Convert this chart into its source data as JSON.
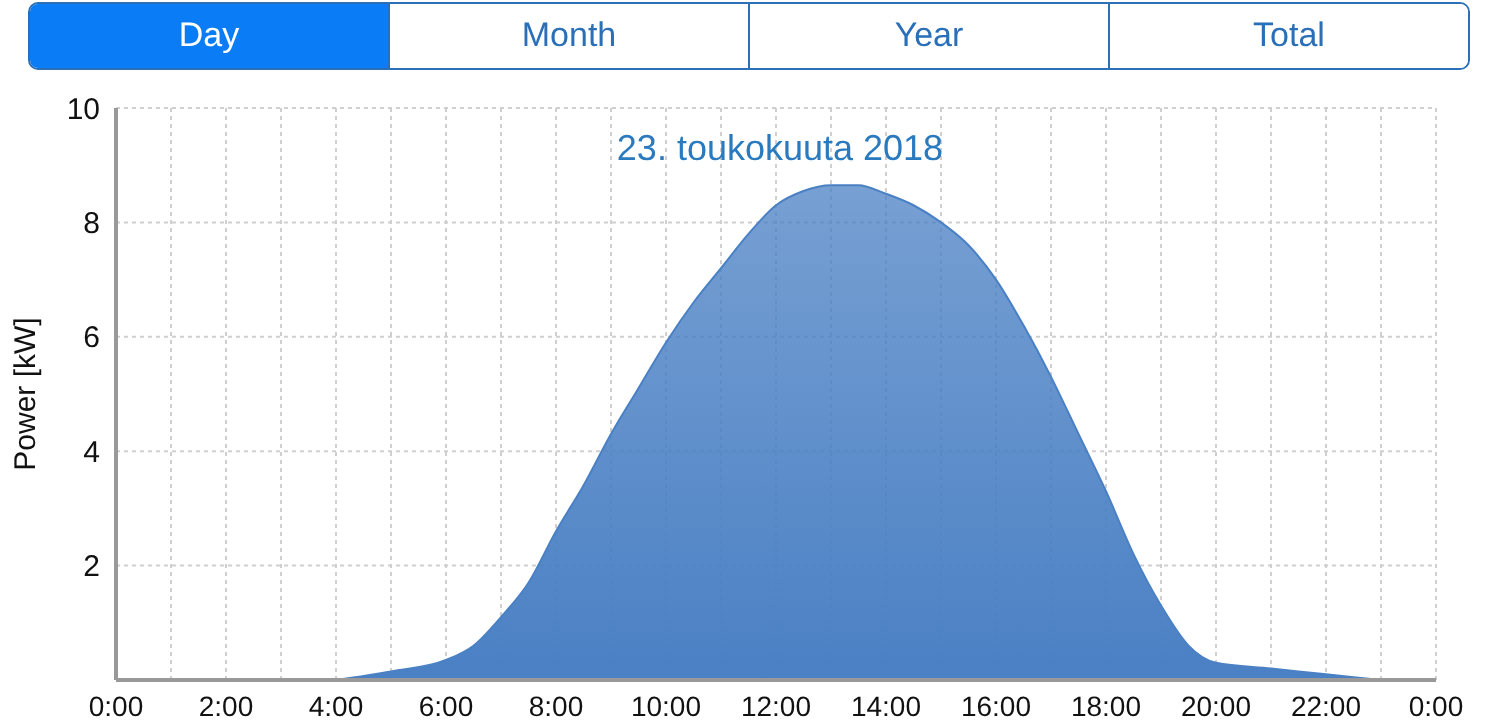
{
  "chart_data": {
    "type": "area",
    "title": "23. toukokuuta 2018",
    "ylabel": "Power [kW]",
    "annotations": [
      "Day",
      "Month",
      "Year",
      "Total"
    ],
    "x": [
      4,
      5,
      6,
      6.5,
      7,
      7.5,
      8,
      8.5,
      9,
      9.5,
      10,
      10.5,
      11,
      11.5,
      12,
      12.5,
      13,
      13.5,
      14,
      14.5,
      15,
      15.5,
      16,
      16.5,
      17,
      17.5,
      18,
      18.5,
      19,
      19.5,
      20,
      21,
      22,
      23
    ],
    "series": [
      {
        "color": "#4a80c4",
        "values": [
          0,
          0.15,
          0.35,
          0.6,
          1.1,
          1.7,
          2.6,
          3.4,
          4.3,
          5.1,
          5.9,
          6.6,
          7.2,
          7.8,
          8.3,
          8.55,
          8.65,
          8.65,
          8.5,
          8.3,
          8.0,
          7.6,
          7.0,
          6.2,
          5.3,
          4.3,
          3.3,
          2.2,
          1.3,
          0.6,
          0.3,
          0.2,
          0.1,
          0
        ]
      }
    ],
    "xlim": [
      0,
      24
    ],
    "xticks": [
      {
        "value": 0,
        "label": "0:00"
      },
      {
        "value": 1,
        "label": null
      },
      {
        "value": 2,
        "label": "2:00"
      },
      {
        "value": 3,
        "label": null
      },
      {
        "value": 4,
        "label": "4:00"
      },
      {
        "value": 5,
        "label": null
      },
      {
        "value": 6,
        "label": "6:00"
      },
      {
        "value": 7,
        "label": null
      },
      {
        "value": 8,
        "label": "8:00"
      },
      {
        "value": 9,
        "label": null
      },
      {
        "value": 10,
        "label": "10:00"
      },
      {
        "value": 11,
        "label": null
      },
      {
        "value": 12,
        "label": "12:00"
      },
      {
        "value": 13,
        "label": null
      },
      {
        "value": 14,
        "label": "14:00"
      },
      {
        "value": 15,
        "label": null
      },
      {
        "value": 16,
        "label": "16:00"
      },
      {
        "value": 17,
        "label": null
      },
      {
        "value": 18,
        "label": "18:00"
      },
      {
        "value": 19,
        "label": null
      },
      {
        "value": 20,
        "label": "20:00"
      },
      {
        "value": 21,
        "label": null
      },
      {
        "value": 22,
        "label": "22:00"
      },
      {
        "value": 23,
        "label": null
      },
      {
        "value": 24,
        "label": "0:00"
      }
    ],
    "ylim": [
      0,
      10
    ],
    "yticks": [
      2,
      4,
      6,
      8,
      10
    ],
    "grid": true,
    "legend": false
  }
}
